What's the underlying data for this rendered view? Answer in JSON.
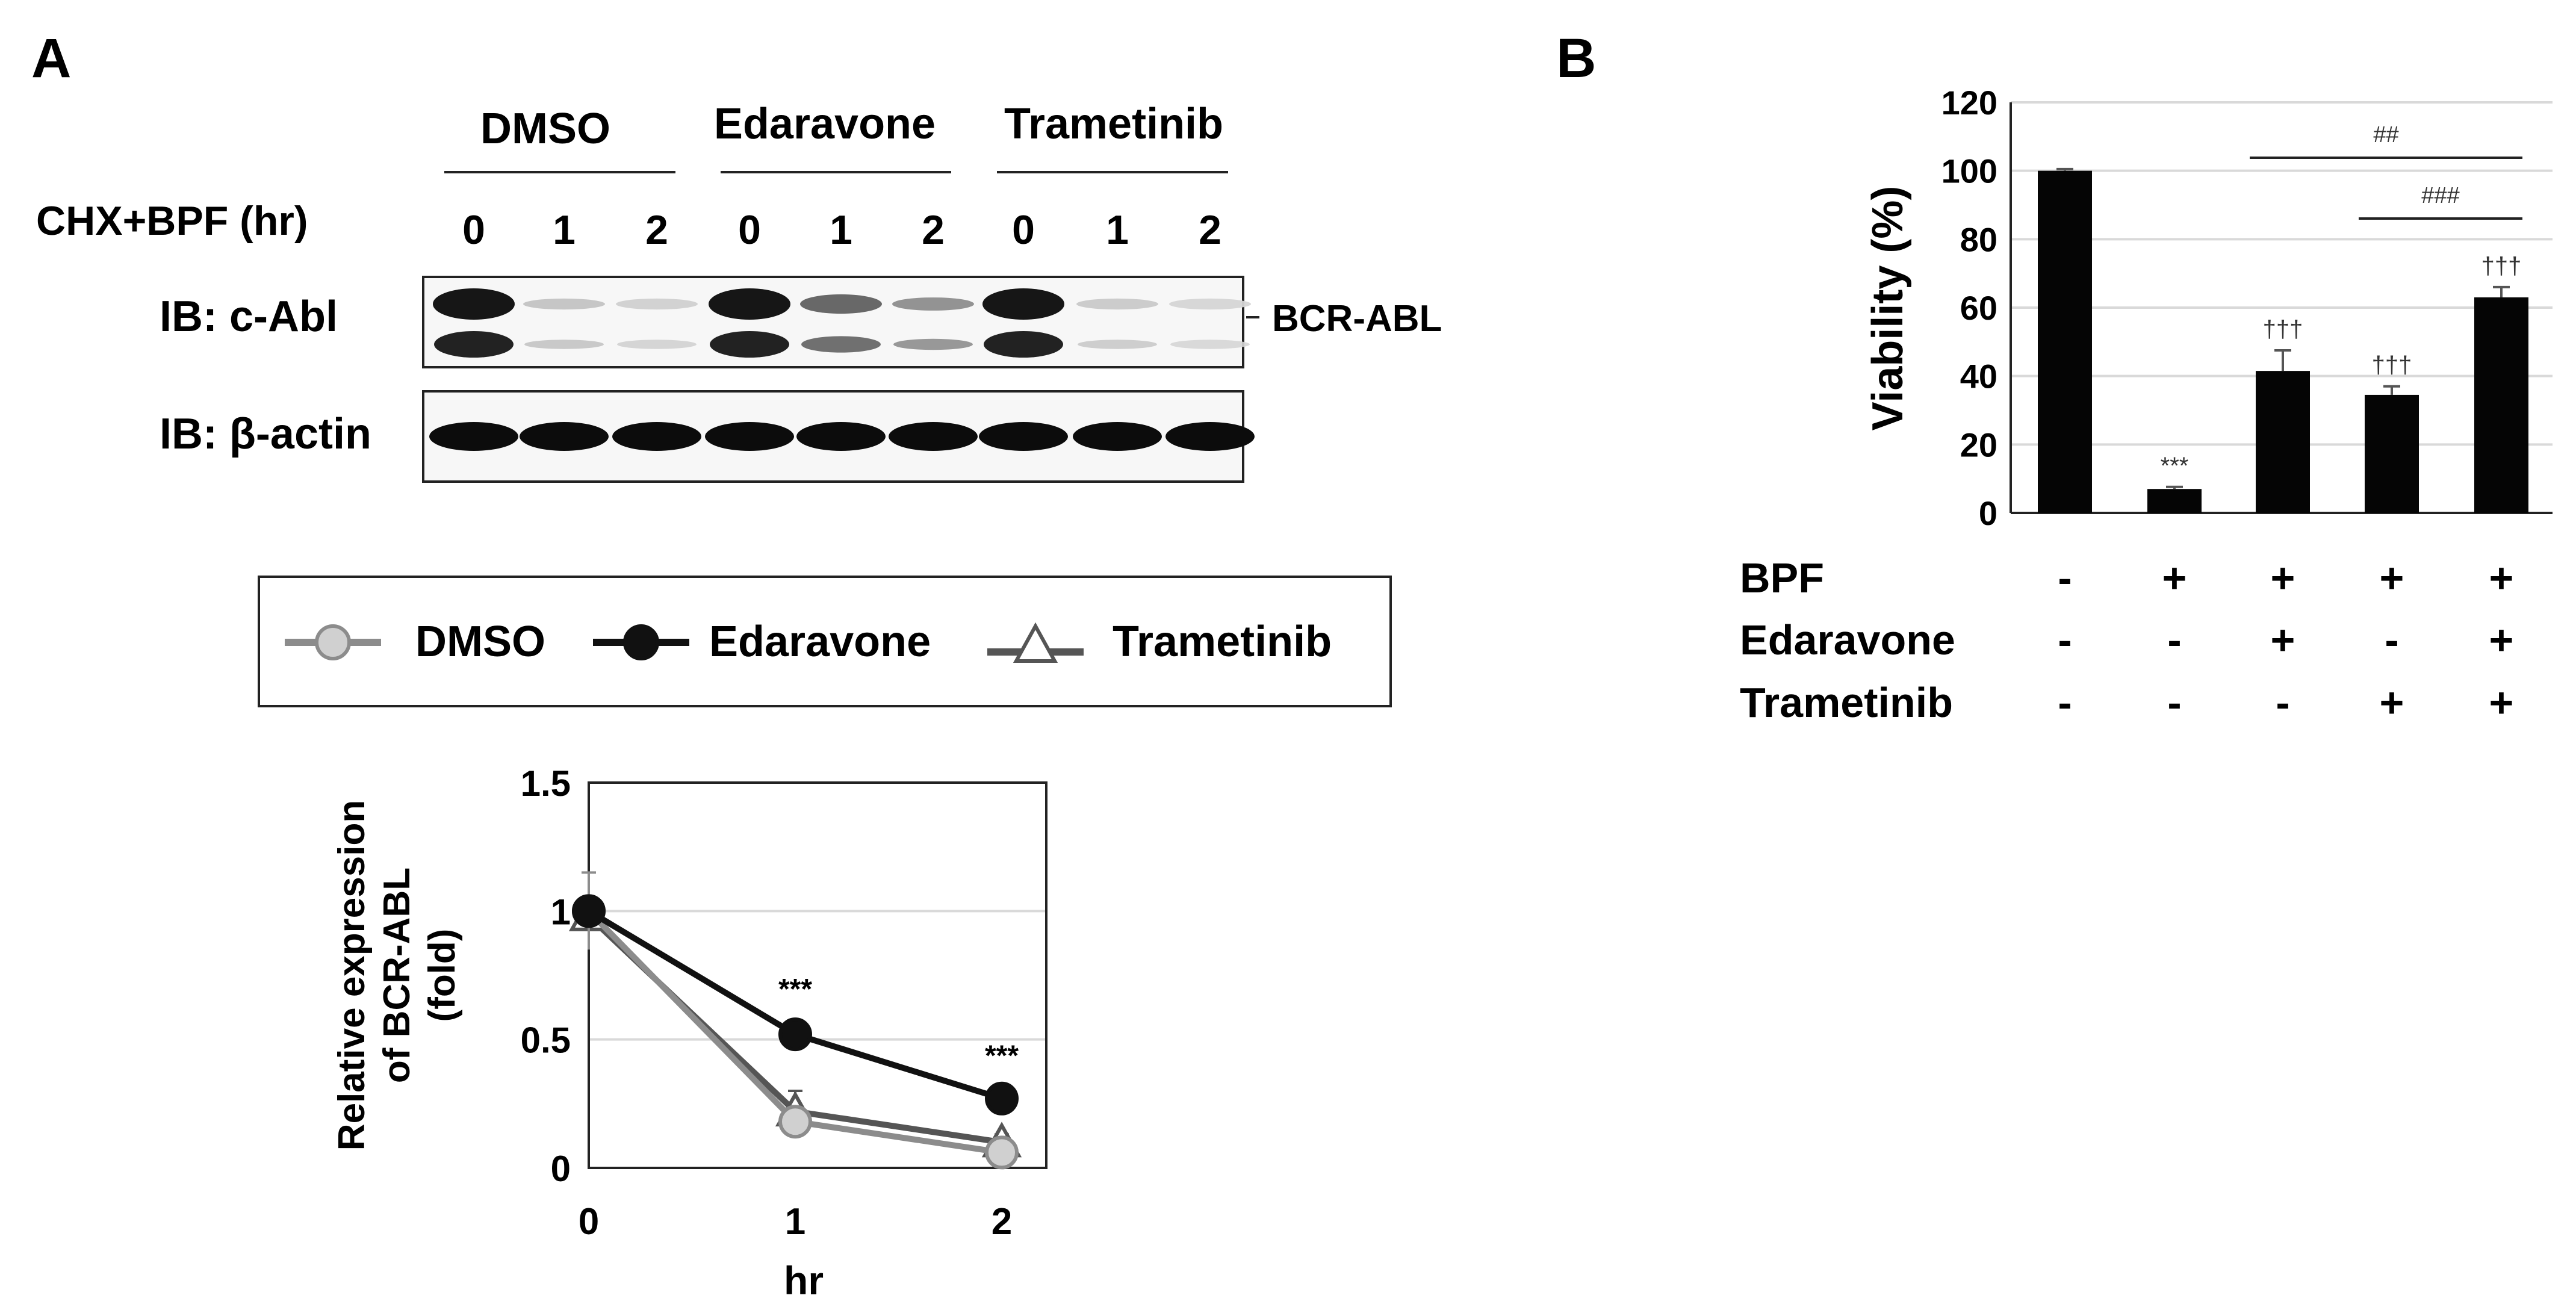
{
  "panels": {
    "a_label": "A",
    "b_label": "B"
  },
  "blot": {
    "group_labels": [
      "DMSO",
      "Edaravone",
      "Trametinib"
    ],
    "time_axis_label": "CHX+BPF (hr)",
    "time_points": [
      "0",
      "1",
      "2",
      "0",
      "1",
      "2",
      "0",
      "1",
      "2"
    ],
    "row_labels": [
      "IB: c-Abl",
      "IB: β-actin"
    ],
    "band_label": "BCR-ABL",
    "c_abl_intensity": [
      1.0,
      0.18,
      0.12,
      1.0,
      0.62,
      0.42,
      1.0,
      0.15,
      0.1
    ],
    "actin_intensity": [
      1,
      1,
      1,
      1,
      1,
      1,
      1,
      1,
      1
    ]
  },
  "legend": {
    "items": [
      "DMSO",
      "Edaravone",
      "Trametinib"
    ]
  },
  "colors": {
    "dmso": "#8c8c8c",
    "dmso_fill": "#d0d0d0",
    "edaravone": "#111111",
    "trametinib": "#555555",
    "grid": "#d9d9d9"
  },
  "chart_data": [
    {
      "type": "line",
      "x": [
        0,
        1,
        2
      ],
      "x_ticks": [
        "0",
        "1",
        "2"
      ],
      "xlabel": "hr",
      "ylabel": "Relative expression of BCR-ABL (fold)",
      "ylabel_lines": [
        "Relative expression",
        "of BCR-ABL",
        "(fold)"
      ],
      "ylim": [
        0,
        1.5
      ],
      "y_ticks": [
        "0",
        "0.5",
        "1",
        "1.5"
      ],
      "grid": true,
      "series": [
        {
          "name": "DMSO",
          "values": [
            1.0,
            0.18,
            0.06
          ],
          "errors": [
            0.15,
            0.05,
            0.02
          ],
          "marker": "circle-open"
        },
        {
          "name": "Edaravone",
          "values": [
            1.0,
            0.52,
            0.27
          ],
          "errors": [
            0.05,
            0.05,
            0.04
          ],
          "marker": "circle-filled"
        },
        {
          "name": "Trametinib",
          "values": [
            0.98,
            0.22,
            0.1
          ],
          "errors": [
            0.05,
            0.08,
            0.03
          ],
          "marker": "triangle"
        }
      ],
      "annotations": [
        {
          "x": 1,
          "text": "***"
        },
        {
          "x": 2,
          "text": "***"
        }
      ]
    },
    {
      "type": "bar",
      "categories": [
        "1",
        "2",
        "3",
        "4",
        "5"
      ],
      "values": [
        100,
        7,
        41.5,
        34.5,
        63
      ],
      "errors": [
        0.5,
        0.6,
        6,
        2.5,
        3
      ],
      "ylabel": "Viability (%)",
      "ylim": [
        0,
        120
      ],
      "y_ticks": [
        "0",
        "20",
        "40",
        "60",
        "80",
        "100",
        "120"
      ],
      "grid": true,
      "bar_annotations": [
        "",
        "***",
        "†††",
        "†††",
        "†††"
      ],
      "significance_brackets": [
        {
          "from": 3,
          "to": 5,
          "text": "##"
        },
        {
          "from": 4,
          "to": 5,
          "text": "###"
        }
      ],
      "conditions": [
        {
          "label": "BPF",
          "values": [
            "-",
            "+",
            "+",
            "+",
            "+"
          ]
        },
        {
          "label": "Edaravone",
          "values": [
            "-",
            "-",
            "+",
            "-",
            "+"
          ]
        },
        {
          "label": "Trametinib",
          "values": [
            "-",
            "-",
            "-",
            "+",
            "+"
          ]
        }
      ]
    }
  ]
}
